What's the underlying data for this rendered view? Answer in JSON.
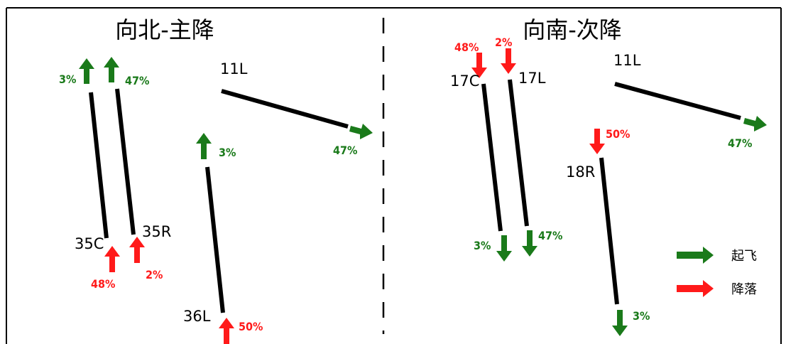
{
  "colors": {
    "takeoff": "#1a7a1a",
    "landing": "#ff1a1a",
    "runway": "#000000",
    "frame": "#000000"
  },
  "panels": {
    "north": {
      "title": "向北-主降",
      "runways": {
        "r35c": {
          "label": "35C",
          "departure_pct": "3%",
          "arrival_pct": "48%"
        },
        "r35r": {
          "label": "35R",
          "departure_pct": "47%",
          "arrival_pct": "2%"
        },
        "r36l": {
          "label": "36L",
          "departure_pct": "3%",
          "arrival_pct": "50%"
        },
        "r11l": {
          "label": "11L",
          "departure_pct": "47%"
        }
      }
    },
    "south": {
      "title": "向南-次降",
      "runways": {
        "r17c": {
          "label": "17C",
          "arrival_pct": "48%",
          "departure_pct": "3%"
        },
        "r17l": {
          "label": "17L",
          "arrival_pct": "2%",
          "departure_pct": "47%"
        },
        "r18r": {
          "label": "18R",
          "arrival_pct": "50%",
          "departure_pct": "3%"
        },
        "r11l": {
          "label": "11L",
          "departure_pct": "47%"
        }
      }
    }
  },
  "legend": {
    "takeoff": "起飞",
    "landing": "降落"
  }
}
